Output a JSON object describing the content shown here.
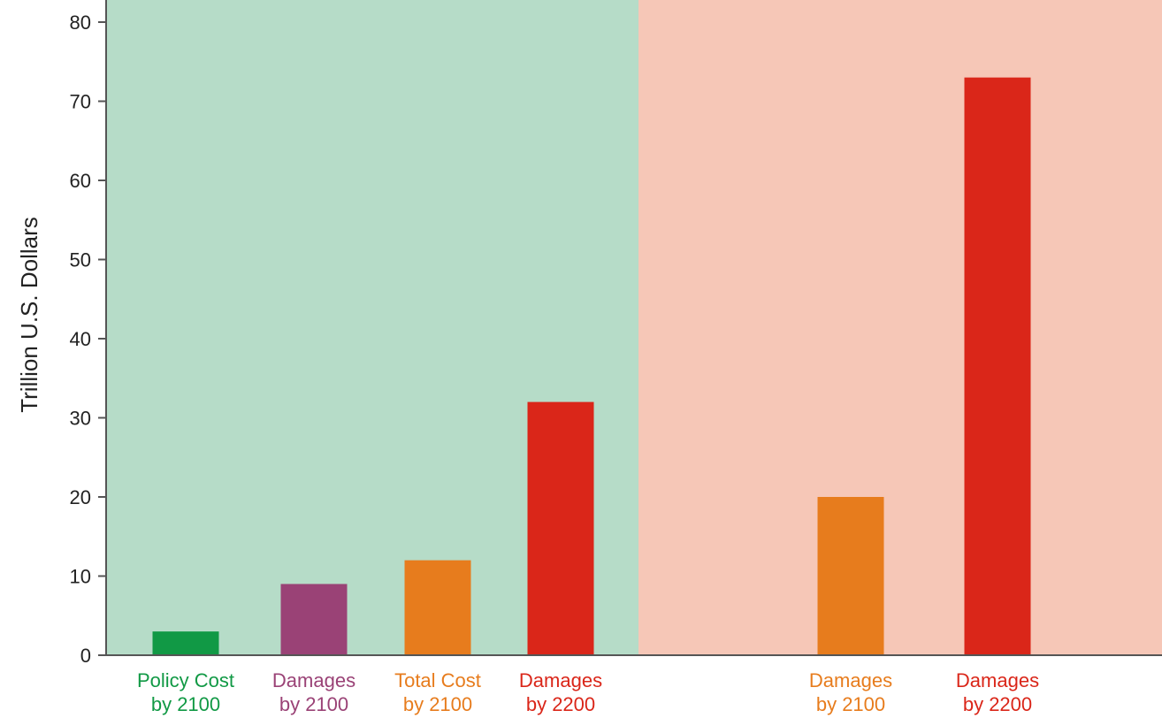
{
  "chart_data": {
    "type": "bar",
    "title": "",
    "xlabel": "",
    "ylabel": "Trillion U.S. Dollars",
    "ylim": [
      0,
      80
    ],
    "yticks": [
      0,
      10,
      20,
      30,
      40,
      50,
      60,
      70,
      80
    ],
    "grid": false,
    "legend": "none",
    "panels": [
      {
        "background": "#b6dcc8"
      },
      {
        "background": "#f6c7b7"
      }
    ],
    "bars": [
      {
        "panel": 0,
        "label": [
          "Policy Cost",
          "by 2100"
        ],
        "value": 3,
        "color": "#119945",
        "label_color": "#119945"
      },
      {
        "panel": 0,
        "label": [
          "Damages",
          "by 2100"
        ],
        "value": 9,
        "color": "#9a4276",
        "label_color": "#9a4276"
      },
      {
        "panel": 0,
        "label": [
          "Total Cost",
          "by 2100"
        ],
        "value": 12,
        "color": "#e77c1d",
        "label_color": "#e77c1d"
      },
      {
        "panel": 0,
        "label": [
          "Damages",
          "by 2200"
        ],
        "value": 32,
        "color": "#da2619",
        "label_color": "#da2619"
      },
      {
        "panel": 1,
        "label": [
          "Damages",
          "by 2100"
        ],
        "value": 20,
        "color": "#e77c1d",
        "label_color": "#e77c1d"
      },
      {
        "panel": 1,
        "label": [
          "Damages",
          "by 2200"
        ],
        "value": 73,
        "color": "#da2619",
        "label_color": "#da2619"
      }
    ]
  }
}
